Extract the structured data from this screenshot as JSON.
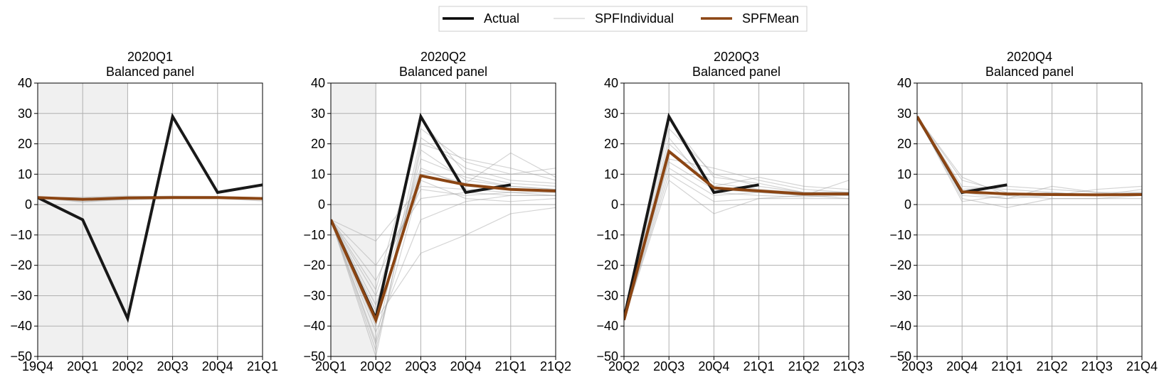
{
  "legend": {
    "placement": "top-center",
    "entries": [
      {
        "label": "Actual",
        "color": "#000000"
      },
      {
        "label": "SPFIndividual",
        "color": "#c8c8c8"
      },
      {
        "label": "SPFMean",
        "color": "#8b4513"
      }
    ]
  },
  "chart_data": [
    {
      "type": "line",
      "title": "2020Q1",
      "subtitle": "Balanced panel",
      "categories": [
        "19Q4",
        "20Q1",
        "20Q2",
        "20Q3",
        "20Q4",
        "21Q1"
      ],
      "ylim": [
        -50,
        40
      ],
      "yticks": [
        40,
        30,
        20,
        10,
        0,
        -10,
        -20,
        -30,
        -40,
        -50
      ],
      "grid": true,
      "shaded_categories": [
        "19Q4",
        "20Q1",
        "20Q2"
      ],
      "series": [
        {
          "name": "Actual",
          "values": [
            2.3,
            -5,
            -37.5,
            29,
            4,
            6.5
          ]
        },
        {
          "name": "SPFMean",
          "values": [
            2.3,
            1.7,
            2.2,
            2.3,
            2.3,
            2.0
          ]
        }
      ],
      "individual": [
        [
          2.3,
          1.0,
          2.0,
          2.1,
          2.2,
          1.8
        ],
        [
          2.3,
          2.4,
          2.8,
          2.6,
          2.4,
          2.2
        ],
        [
          2.3,
          1.5,
          1.5,
          2.0,
          2.0,
          1.2
        ],
        [
          2.3,
          2.0,
          2.5,
          2.8,
          2.7,
          2.3
        ],
        [
          2.3,
          0.8,
          1.8,
          2.2,
          2.5,
          2.1
        ],
        [
          2.3,
          1.9,
          2.3,
          2.4,
          2.1,
          1.9
        ]
      ]
    },
    {
      "type": "line",
      "title": "2020Q2",
      "subtitle": "Balanced panel",
      "categories": [
        "20Q1",
        "20Q2",
        "20Q3",
        "20Q4",
        "21Q1",
        "21Q2"
      ],
      "ylim": [
        -50,
        40
      ],
      "yticks": [
        40,
        30,
        20,
        10,
        0,
        -10,
        -20,
        -30,
        -40,
        -50
      ],
      "grid": true,
      "shaded_categories": [
        "20Q1",
        "20Q2"
      ],
      "series": [
        {
          "name": "Actual",
          "values": [
            -5,
            -37.5,
            29,
            4,
            6.5,
            null
          ]
        },
        {
          "name": "SPFMean",
          "values": [
            -5,
            -38,
            9.5,
            6.5,
            5,
            4.5
          ]
        }
      ],
      "individual": [
        [
          -5,
          -48,
          18,
          8,
          6,
          5
        ],
        [
          -5,
          -35,
          28,
          10,
          7,
          6
        ],
        [
          -5,
          -25,
          5,
          3,
          4,
          4
        ],
        [
          -5,
          -50,
          20,
          15,
          12,
          8
        ],
        [
          -5,
          -42,
          -5,
          1,
          3,
          3
        ],
        [
          -5,
          -30,
          12,
          6,
          5,
          4
        ],
        [
          -5,
          -20,
          2,
          4,
          3,
          3
        ],
        [
          -5,
          -45,
          22,
          12,
          8,
          7
        ],
        [
          -5,
          -38,
          -16,
          -10,
          -3,
          -1
        ],
        [
          -5,
          -12,
          6,
          5,
          4,
          3
        ],
        [
          -5,
          -40,
          15,
          9,
          6,
          5
        ],
        [
          -5,
          -28,
          25,
          14,
          10,
          12
        ],
        [
          -5,
          -46,
          8,
          2,
          1,
          2
        ],
        [
          -5,
          -33,
          11,
          7,
          17,
          9
        ]
      ]
    },
    {
      "type": "line",
      "title": "2020Q3",
      "subtitle": "Balanced panel",
      "categories": [
        "20Q2",
        "20Q3",
        "20Q4",
        "21Q1",
        "21Q2",
        "21Q3"
      ],
      "ylim": [
        -50,
        40
      ],
      "yticks": [
        40,
        30,
        20,
        10,
        0,
        -10,
        -20,
        -30,
        -40,
        -50
      ],
      "grid": true,
      "shaded_categories": [],
      "series": [
        {
          "name": "Actual",
          "values": [
            -37.5,
            29,
            4,
            6.5,
            null,
            null
          ]
        },
        {
          "name": "SPFMean",
          "values": [
            -38,
            17.5,
            5.5,
            4.5,
            3.5,
            3.5
          ]
        }
      ],
      "individual": [
        [
          -38,
          25,
          10,
          6,
          4,
          4
        ],
        [
          -38,
          12,
          3,
          4,
          3,
          3
        ],
        [
          -38,
          20,
          7,
          5,
          4,
          3.5
        ],
        [
          -38,
          8,
          -3,
          2,
          3,
          8
        ],
        [
          -38,
          15,
          12,
          8,
          5,
          4
        ],
        [
          -38,
          22,
          4,
          3,
          2.5,
          3
        ],
        [
          -38,
          18,
          6,
          9,
          6,
          5
        ],
        [
          -38,
          10,
          1,
          2,
          2,
          2
        ],
        [
          -38,
          28,
          9,
          7,
          4,
          4
        ],
        [
          -38,
          14,
          5,
          4,
          3,
          2
        ]
      ]
    },
    {
      "type": "line",
      "title": "2020Q4",
      "subtitle": "Balanced panel",
      "categories": [
        "20Q3",
        "20Q4",
        "21Q1",
        "21Q2",
        "21Q3",
        "21Q4"
      ],
      "ylim": [
        -50,
        40
      ],
      "yticks": [
        40,
        30,
        20,
        10,
        0,
        -10,
        -20,
        -30,
        -40,
        -50
      ],
      "grid": true,
      "shaded_categories": [],
      "series": [
        {
          "name": "Actual",
          "values": [
            29,
            4,
            6.5,
            null,
            null,
            null
          ]
        },
        {
          "name": "SPFMean",
          "values": [
            29,
            4.2,
            3.5,
            3.3,
            3.2,
            3.3
          ]
        }
      ],
      "individual": [
        [
          29,
          9,
          3,
          4,
          3,
          5
        ],
        [
          29,
          2,
          -1,
          2,
          2,
          3
        ],
        [
          29,
          6,
          5,
          4,
          3,
          3
        ],
        [
          29,
          3,
          2,
          6,
          4,
          4
        ],
        [
          29,
          8,
          4,
          3,
          5,
          6
        ],
        [
          29,
          1,
          3,
          2,
          2,
          2
        ],
        [
          29,
          5,
          6,
          5,
          4,
          3
        ],
        [
          29,
          4,
          2,
          3,
          3,
          4
        ]
      ]
    }
  ]
}
